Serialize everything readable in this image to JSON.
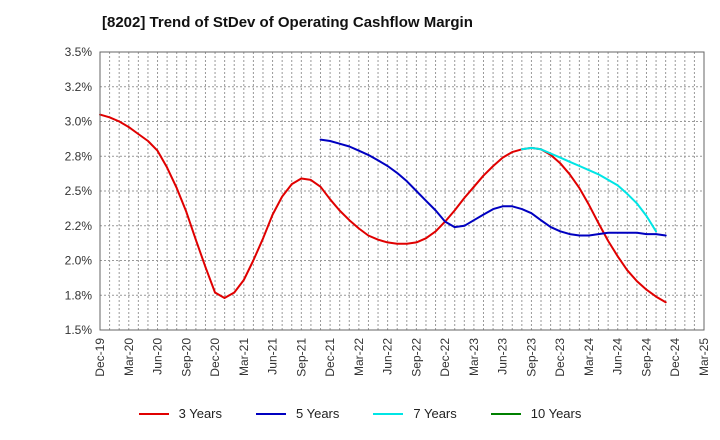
{
  "chart_data": {
    "type": "line",
    "title": "[8202]  Trend of StDev of Operating Cashflow Margin",
    "xlabel": "",
    "ylabel": "",
    "ylim": [
      1.5,
      3.5
    ],
    "y_ticks": [
      "3.5%",
      "3.2%",
      "3.0%",
      "2.8%",
      "2.5%",
      "2.2%",
      "2.0%",
      "1.8%",
      "1.5%"
    ],
    "y_tick_values": [
      3.5,
      3.25,
      3.0,
      2.75,
      2.5,
      2.25,
      2.0,
      1.75,
      1.5
    ],
    "categories": [
      "Dec-19",
      "Mar-20",
      "Jun-20",
      "Sep-20",
      "Dec-20",
      "Mar-21",
      "Jun-21",
      "Sep-21",
      "Dec-21",
      "Mar-22",
      "Jun-22",
      "Sep-22",
      "Dec-22",
      "Mar-23",
      "Jun-23",
      "Sep-23",
      "Dec-23",
      "Mar-24",
      "Jun-24",
      "Sep-24",
      "Dec-24",
      "Mar-25"
    ],
    "grid": true,
    "legend_position": "bottom",
    "series": [
      {
        "name": "3 Years",
        "color": "#e00000",
        "points": [
          [
            0,
            3.05
          ],
          [
            0.33,
            3.03
          ],
          [
            0.67,
            3.0
          ],
          [
            1,
            2.96
          ],
          [
            1.33,
            2.91
          ],
          [
            1.67,
            2.86
          ],
          [
            2,
            2.79
          ],
          [
            2.33,
            2.67
          ],
          [
            2.67,
            2.52
          ],
          [
            3,
            2.35
          ],
          [
            3.33,
            2.15
          ],
          [
            3.67,
            1.95
          ],
          [
            4,
            1.77
          ],
          [
            4.33,
            1.73
          ],
          [
            4.67,
            1.77
          ],
          [
            5,
            1.86
          ],
          [
            5.33,
            2.0
          ],
          [
            5.67,
            2.16
          ],
          [
            6,
            2.33
          ],
          [
            6.33,
            2.46
          ],
          [
            6.67,
            2.55
          ],
          [
            7,
            2.59
          ],
          [
            7.33,
            2.58
          ],
          [
            7.67,
            2.53
          ],
          [
            8,
            2.44
          ],
          [
            8.33,
            2.36
          ],
          [
            8.67,
            2.29
          ],
          [
            9,
            2.23
          ],
          [
            9.33,
            2.18
          ],
          [
            9.67,
            2.15
          ],
          [
            10,
            2.13
          ],
          [
            10.33,
            2.12
          ],
          [
            10.67,
            2.12
          ],
          [
            11,
            2.13
          ],
          [
            11.33,
            2.16
          ],
          [
            11.67,
            2.21
          ],
          [
            12,
            2.28
          ],
          [
            12.33,
            2.36
          ],
          [
            12.67,
            2.45
          ],
          [
            13,
            2.53
          ],
          [
            13.33,
            2.61
          ],
          [
            13.67,
            2.68
          ],
          [
            14,
            2.74
          ],
          [
            14.33,
            2.78
          ],
          [
            14.67,
            2.8
          ],
          [
            15,
            2.81
          ],
          [
            15.33,
            2.8
          ],
          [
            15.67,
            2.76
          ],
          [
            16,
            2.7
          ],
          [
            16.33,
            2.62
          ],
          [
            16.67,
            2.52
          ],
          [
            17,
            2.4
          ],
          [
            17.33,
            2.27
          ],
          [
            17.67,
            2.14
          ],
          [
            18,
            2.03
          ],
          [
            18.33,
            1.93
          ],
          [
            18.67,
            1.85
          ],
          [
            19,
            1.79
          ],
          [
            19.33,
            1.74
          ],
          [
            19.67,
            1.7
          ]
        ]
      },
      {
        "name": "5 Years",
        "color": "#0000c0",
        "points": [
          [
            7.67,
            2.87
          ],
          [
            8,
            2.86
          ],
          [
            8.33,
            2.84
          ],
          [
            8.67,
            2.82
          ],
          [
            9,
            2.79
          ],
          [
            9.33,
            2.76
          ],
          [
            9.67,
            2.72
          ],
          [
            10,
            2.68
          ],
          [
            10.33,
            2.63
          ],
          [
            10.67,
            2.57
          ],
          [
            11,
            2.5
          ],
          [
            11.33,
            2.43
          ],
          [
            11.67,
            2.36
          ],
          [
            12,
            2.28
          ],
          [
            12.33,
            2.24
          ],
          [
            12.67,
            2.25
          ],
          [
            13,
            2.29
          ],
          [
            13.33,
            2.33
          ],
          [
            13.67,
            2.37
          ],
          [
            14,
            2.39
          ],
          [
            14.33,
            2.39
          ],
          [
            14.67,
            2.37
          ],
          [
            15,
            2.34
          ],
          [
            15.33,
            2.29
          ],
          [
            15.67,
            2.24
          ],
          [
            16,
            2.21
          ],
          [
            16.33,
            2.19
          ],
          [
            16.67,
            2.18
          ],
          [
            17,
            2.18
          ],
          [
            17.33,
            2.19
          ],
          [
            17.67,
            2.2
          ],
          [
            18,
            2.2
          ],
          [
            18.33,
            2.2
          ],
          [
            18.67,
            2.2
          ],
          [
            19,
            2.19
          ],
          [
            19.33,
            2.19
          ],
          [
            19.67,
            2.18
          ]
        ]
      },
      {
        "name": "7 Years",
        "color": "#00e5e5",
        "points": [
          [
            14.67,
            2.8
          ],
          [
            15,
            2.81
          ],
          [
            15.33,
            2.8
          ],
          [
            15.67,
            2.77
          ],
          [
            16,
            2.74
          ],
          [
            16.33,
            2.71
          ],
          [
            16.67,
            2.68
          ],
          [
            17,
            2.65
          ],
          [
            17.33,
            2.62
          ],
          [
            17.67,
            2.58
          ],
          [
            18,
            2.54
          ],
          [
            18.33,
            2.48
          ],
          [
            18.67,
            2.41
          ],
          [
            19,
            2.32
          ],
          [
            19.33,
            2.21
          ]
        ]
      },
      {
        "name": "10 Years",
        "color": "#008000",
        "points": []
      }
    ]
  }
}
